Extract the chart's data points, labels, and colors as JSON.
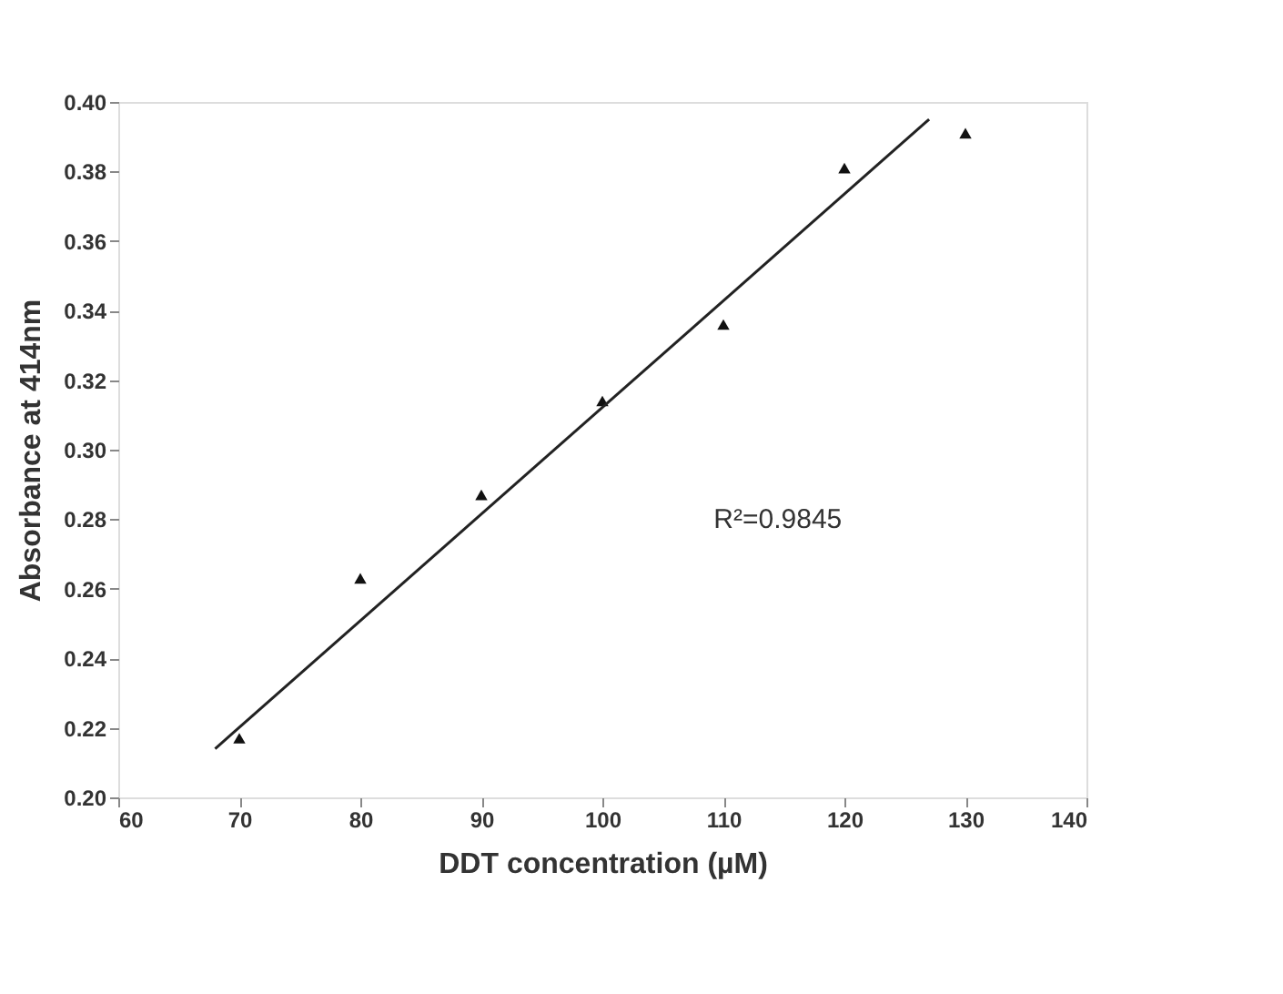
{
  "chart_data": {
    "type": "scatter",
    "xlabel": "DDT concentration (µM)",
    "ylabel": "Absorbance at 414nm",
    "xlim": [
      60,
      140
    ],
    "xticks": [
      60,
      70,
      80,
      90,
      100,
      110,
      120,
      130,
      140
    ],
    "ylim": [
      0.2,
      0.4
    ],
    "yticks": [
      {
        "value": 0.2,
        "label": "0.20"
      },
      {
        "value": 0.22,
        "label": "0.22"
      },
      {
        "value": 0.24,
        "label": "0.24"
      },
      {
        "value": 0.26,
        "label": "0.26"
      },
      {
        "value": 0.28,
        "label": "0.28"
      },
      {
        "value": 0.3,
        "label": "0.30"
      },
      {
        "value": 0.32,
        "label": "0.32"
      },
      {
        "value": 0.34,
        "label": "0.34"
      },
      {
        "value": 0.36,
        "label": "0.36"
      },
      {
        "value": 0.38,
        "label": "0.38"
      },
      {
        "value": 0.4,
        "label": "0.40"
      }
    ],
    "grid": false,
    "annotations": [
      "R²=0.9845"
    ],
    "series": [
      {
        "color": "#111111",
        "marker": "triangle",
        "x": [
          70,
          80,
          90,
          100,
          110,
          120,
          130
        ],
        "values": [
          0.217,
          0.263,
          0.287,
          0.314,
          0.336,
          0.381,
          0.391
        ]
      },
      {
        "type": "line",
        "color": "#222222",
        "marker": "none",
        "line_style": "solid",
        "x": [
          68,
          127
        ],
        "values": [
          0.214,
          0.395
        ]
      }
    ]
  }
}
